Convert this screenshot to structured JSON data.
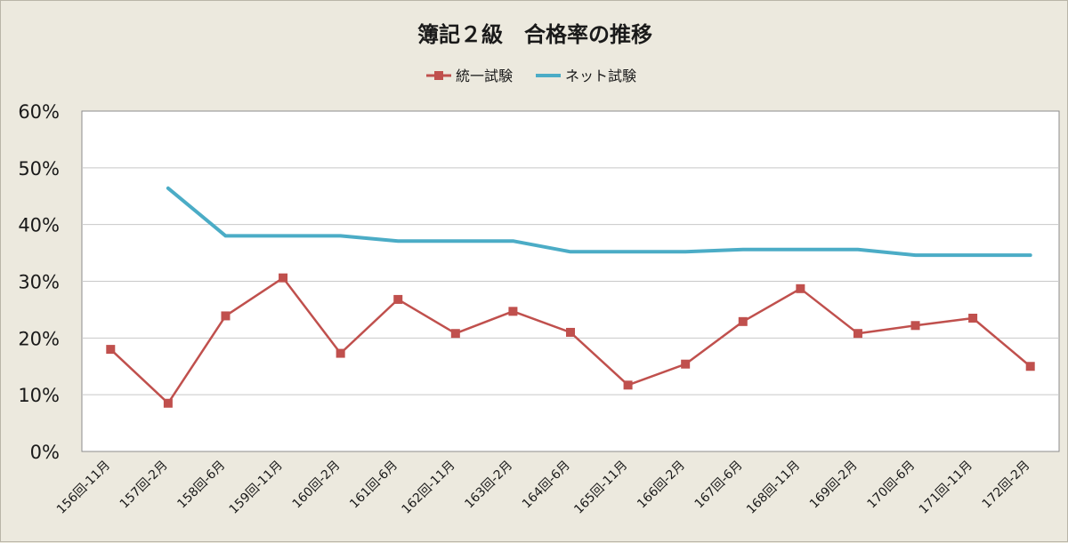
{
  "chart_data": {
    "type": "line",
    "title": "簿記２級　合格率の推移",
    "categories": [
      "156回-11月",
      "157回-2月",
      "158回-6月",
      "159回-11月",
      "160回-2月",
      "161回-6月",
      "162回-11月",
      "163回-2月",
      "164回-6月",
      "165回-11月",
      "166回-2月",
      "167回-6月",
      "168回-11月",
      "169回-2月",
      "170回-6月",
      "171回-11月",
      "172回-2月"
    ],
    "series": [
      {
        "name": "統一試験",
        "color": "#c0504d",
        "marker": "square",
        "values": [
          18.0,
          8.5,
          23.9,
          30.6,
          17.3,
          26.8,
          20.8,
          24.7,
          21.0,
          11.7,
          15.4,
          22.9,
          28.7,
          20.8,
          22.2,
          23.5,
          15.0
        ]
      },
      {
        "name": "ネット試験",
        "color": "#4bacc6",
        "marker": "none",
        "values": [
          null,
          46.4,
          38.0,
          38.0,
          38.0,
          37.1,
          37.1,
          37.1,
          35.2,
          35.2,
          35.2,
          35.6,
          35.6,
          35.6,
          34.6,
          34.6,
          34.6
        ]
      }
    ],
    "ylim": [
      0,
      60
    ],
    "yticks": [
      0,
      10,
      20,
      30,
      40,
      50,
      60
    ],
    "ytick_labels": [
      "0%",
      "10%",
      "20%",
      "30%",
      "40%",
      "50%",
      "60%"
    ],
    "xlabel": "",
    "ylabel": "",
    "grid": "horizontal",
    "legend_position": "top-center"
  }
}
